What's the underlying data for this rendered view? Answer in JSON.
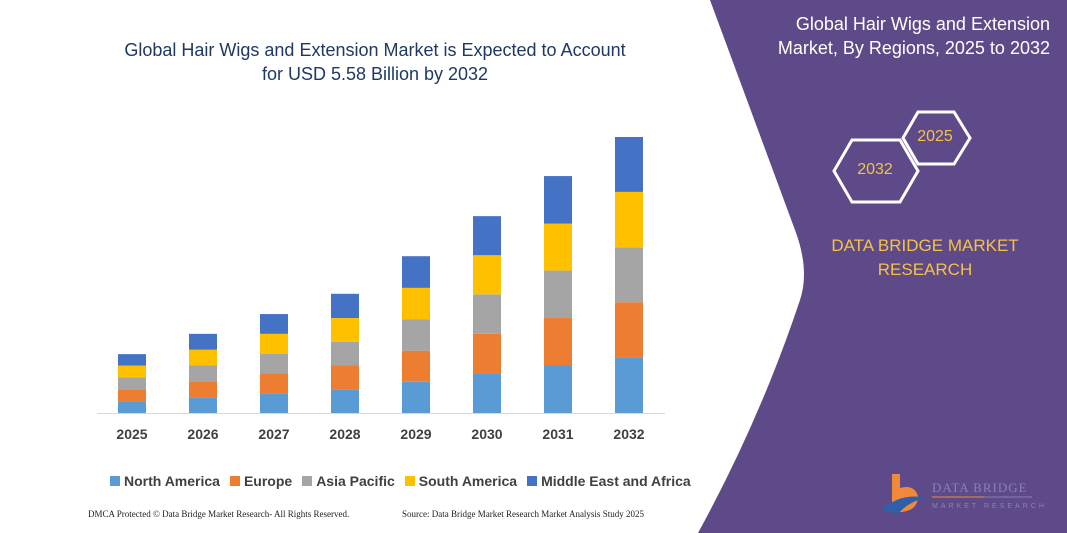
{
  "chart_data": {
    "type": "bar",
    "stacked": true,
    "title": "Global Hair Wigs and Extension Market is Expected to Account for USD 5.58 Billion by 2032",
    "categories": [
      "2025",
      "2026",
      "2027",
      "2028",
      "2029",
      "2030",
      "2031",
      "2032"
    ],
    "series": [
      {
        "name": "North America",
        "color": "#5b9bd5",
        "values": [
          0.24,
          0.32,
          0.4,
          0.48,
          0.63,
          0.8,
          0.96,
          1.12
        ]
      },
      {
        "name": "Europe",
        "color": "#ed7d31",
        "values": [
          0.24,
          0.32,
          0.4,
          0.48,
          0.63,
          0.8,
          0.96,
          1.12
        ]
      },
      {
        "name": "Asia Pacific",
        "color": "#a5a5a5",
        "values": [
          0.24,
          0.32,
          0.4,
          0.48,
          0.63,
          0.8,
          0.96,
          1.11
        ]
      },
      {
        "name": "South America",
        "color": "#ffc000",
        "values": [
          0.24,
          0.32,
          0.4,
          0.48,
          0.64,
          0.79,
          0.95,
          1.12
        ]
      },
      {
        "name": "Middle East and Africa",
        "color": "#4472c4",
        "values": [
          0.23,
          0.32,
          0.4,
          0.49,
          0.64,
          0.79,
          0.96,
          1.11
        ]
      }
    ],
    "ylim": [
      0,
      5.58
    ],
    "grid": false,
    "legend_position": "bottom"
  },
  "title_line1": "Global Hair Wigs and Extension Market is Expected to Account",
  "title_line2": "for USD 5.58 Billion by 2032",
  "footer": {
    "left": "DMCA Protected © Data Bridge Market Research- All Rights Reserved.",
    "right": "Source: Data Bridge Market Research Market Analysis Study 2025"
  },
  "panel": {
    "color": "#5e4a89",
    "title_line1": "Global Hair Wigs and Extension",
    "title_line2": "Market, By Regions, 2025 to 2032",
    "hex_start": "2025",
    "hex_end": "2032",
    "brand_line1": "DATA BRIDGE MARKET",
    "brand_line2": "RESEARCH",
    "logo_text": "DATA BRIDGE",
    "logo_sub": "MARKET RESEARCH"
  }
}
